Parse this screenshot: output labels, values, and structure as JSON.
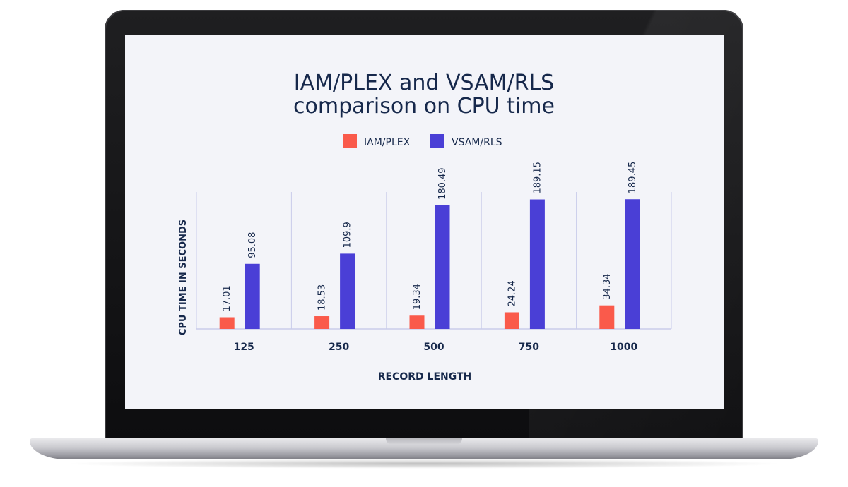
{
  "chart_data": {
    "type": "bar",
    "title_lines": [
      "IAM/PLEX and VSAM/RLS",
      "comparison on CPU time"
    ],
    "xlabel": "RECORD LENGTH",
    "ylabel": "CPU TIME IN SECONDS",
    "categories": [
      "125",
      "250",
      "500",
      "750",
      "1000"
    ],
    "series": [
      {
        "name": "IAM/PLEX",
        "color": "#fa5a4b",
        "values": [
          17.01,
          18.53,
          19.34,
          24.24,
          34.34
        ],
        "labels": [
          "17.01",
          "18.53",
          "19.34",
          "24.24",
          "34.34"
        ]
      },
      {
        "name": "VSAM/RLS",
        "color": "#4a3fd6",
        "values": [
          95.08,
          109.9,
          180.49,
          189.15,
          189.45
        ],
        "labels": [
          "95.08",
          "109.9",
          "180.49",
          "189.15",
          "189.45"
        ]
      }
    ],
    "ylim": [
      0,
      200
    ],
    "grid": "vertical-separators",
    "legend_position": "top-center"
  }
}
